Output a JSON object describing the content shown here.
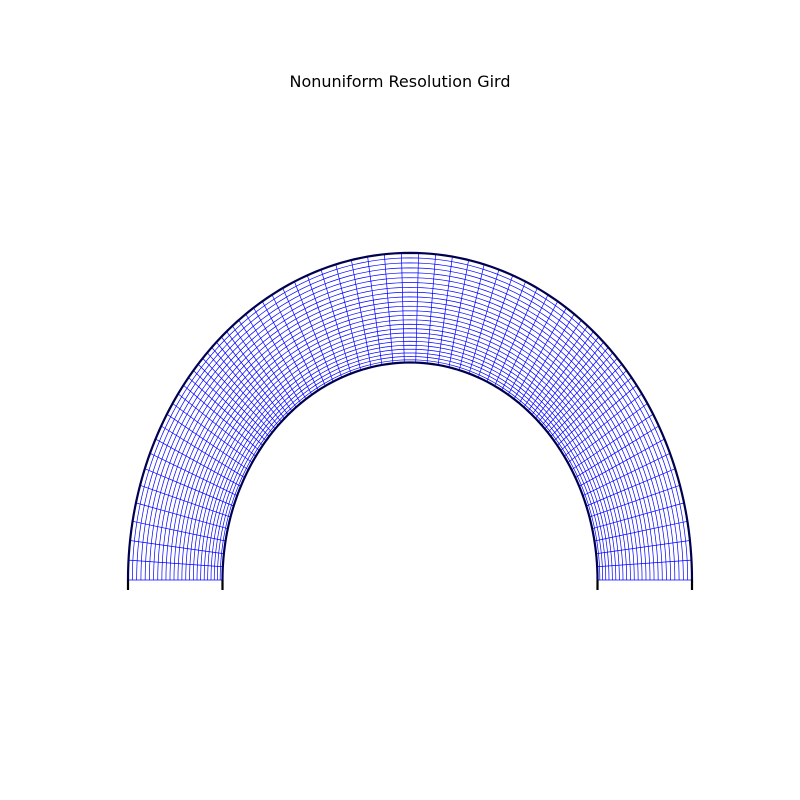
{
  "title": "Nonuniform Resolution Gird",
  "colors": {
    "background": "#ffffff",
    "grid_line": "#0000ff",
    "boundary": "#000050",
    "end_cap": "#000000"
  },
  "chart_data": {
    "type": "polar-grid",
    "angle_range_deg": [
      0,
      180
    ],
    "radius_range": [
      1.0,
      1.5
    ],
    "radial_lines": {
      "count": 76,
      "spacing": "nonuniform, densest near 90 and 0 degrees, sparsest near 45 and 135 degrees"
    },
    "arc_lines": {
      "count": 26,
      "spacing": "nonuniform, densest near the inner radius and near 0 and 180 degrees"
    },
    "boundaries": [
      "inner-arc",
      "outer-arc"
    ]
  }
}
